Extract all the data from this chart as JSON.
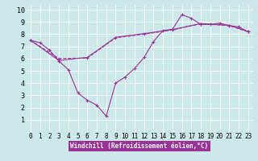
{
  "background_color": "#cce8e8",
  "line_color": "#993399",
  "grid_color": "#ffffff",
  "xlabel": "Windchill (Refroidissement éolien,°C)",
  "xlabel_bg": "#993399",
  "xlabel_fg": "#ffffff",
  "xlim": [
    -0.5,
    23.5
  ],
  "ylim": [
    0,
    10.4
  ],
  "xticks": [
    0,
    1,
    2,
    3,
    4,
    5,
    6,
    7,
    8,
    9,
    10,
    11,
    12,
    13,
    14,
    15,
    16,
    17,
    18,
    19,
    20,
    21,
    22,
    23
  ],
  "yticks": [
    1,
    2,
    3,
    4,
    5,
    6,
    7,
    8,
    9,
    10
  ],
  "line1_x": [
    0,
    1,
    2,
    3,
    4,
    5,
    6,
    7,
    8,
    9,
    10,
    11,
    12,
    13,
    14,
    15,
    16,
    17,
    18,
    19,
    20,
    21,
    22,
    23
  ],
  "line1_y": [
    7.5,
    7.3,
    6.7,
    5.8,
    5.1,
    3.2,
    2.6,
    2.2,
    1.3,
    4.0,
    4.5,
    5.2,
    6.1,
    7.4,
    8.3,
    8.4,
    9.6,
    9.3,
    8.8,
    8.8,
    8.9,
    8.7,
    8.6,
    8.2
  ],
  "line2_x": [
    0,
    3,
    6,
    9,
    12,
    15,
    18,
    21,
    23
  ],
  "line2_y": [
    7.5,
    6.0,
    6.05,
    7.7,
    8.0,
    8.35,
    8.85,
    8.7,
    8.2
  ],
  "line3_x": [
    0,
    3,
    6,
    9,
    12,
    15,
    18,
    21,
    23
  ],
  "line3_y": [
    7.5,
    5.85,
    6.1,
    7.75,
    8.05,
    8.38,
    8.87,
    8.73,
    8.22
  ],
  "tick_fontsize": 5.5,
  "xlabel_fontsize": 5.5
}
